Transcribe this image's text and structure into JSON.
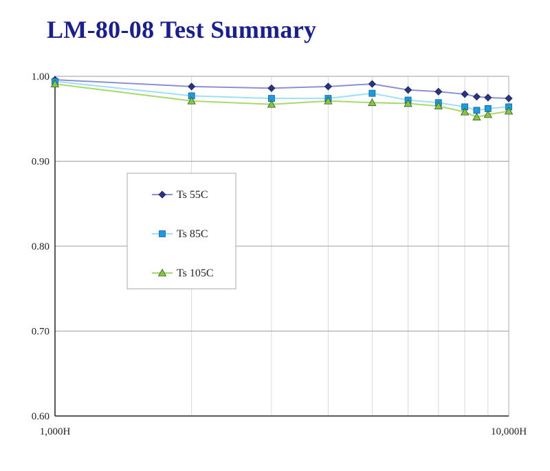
{
  "title": "LM-80-08 Test Summary",
  "chart_data": {
    "type": "line",
    "title": "LM-80-08 Test Summary",
    "xscale": "log",
    "xlim": [
      1000,
      10000
    ],
    "ylim": [
      0.6,
      1.0
    ],
    "x_tick_labels": [
      "1,000H",
      "10,000H"
    ],
    "y_ticks": [
      0.6,
      0.7,
      0.8,
      0.9,
      1.0
    ],
    "y_tick_labels": [
      "0.60",
      "0.70",
      "0.80",
      "0.90",
      "1.00"
    ],
    "grid": true,
    "legend_placement": "left-middle",
    "x": [
      1000,
      2000,
      3000,
      4000,
      5000,
      6000,
      7000,
      8000,
      8500,
      9000,
      10000
    ],
    "series": [
      {
        "name": "Ts 55C",
        "color": "#2a3580",
        "line_color": "#8c8fd6",
        "marker": "diamond",
        "values": [
          0.996,
          0.988,
          0.986,
          0.988,
          0.991,
          0.984,
          0.982,
          0.979,
          0.976,
          0.975,
          0.974
        ]
      },
      {
        "name": "Ts 85C",
        "color": "#1e9be0",
        "line_color": "#9be0f7",
        "marker": "square",
        "values": [
          0.994,
          0.977,
          0.974,
          0.974,
          0.98,
          0.972,
          0.969,
          0.964,
          0.96,
          0.962,
          0.964
        ]
      },
      {
        "name": "Ts 105C",
        "color": "#8bc34a",
        "line_color": "#a8d86a",
        "marker": "triangle",
        "values": [
          0.991,
          0.971,
          0.967,
          0.971,
          0.969,
          0.968,
          0.965,
          0.958,
          0.952,
          0.955,
          0.959
        ]
      }
    ]
  }
}
